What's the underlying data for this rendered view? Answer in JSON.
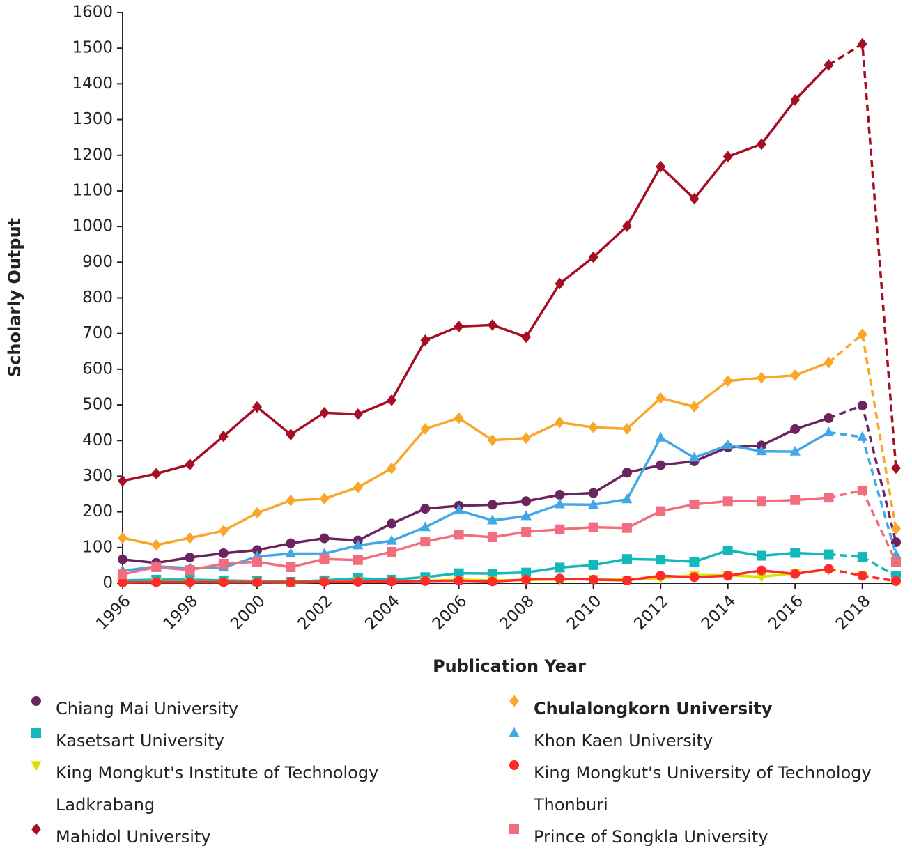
{
  "chart_data": {
    "type": "line",
    "x_label": "Publication Year",
    "y_label": "Scholarly Output",
    "x": [
      1996,
      1997,
      1998,
      1999,
      2000,
      2001,
      2002,
      2003,
      2004,
      2005,
      2006,
      2007,
      2008,
      2009,
      2010,
      2011,
      2012,
      2013,
      2014,
      2015,
      2016,
      2017,
      2018,
      2019
    ],
    "xlim": [
      1996,
      2019
    ],
    "xticks": [
      1996,
      1998,
      2000,
      2002,
      2004,
      2006,
      2008,
      2010,
      2012,
      2014,
      2016,
      2018
    ],
    "ylim": [
      0,
      1600
    ],
    "yticks": [
      0,
      100,
      200,
      300,
      400,
      500,
      600,
      700,
      800,
      900,
      1000,
      1100,
      1200,
      1300,
      1400,
      1500,
      1600
    ],
    "dashed_from_x": 2017,
    "series": [
      {
        "name": "Chiang Mai University",
        "color": "#6b2460",
        "marker": "circle",
        "values": [
          67,
          57,
          72,
          84,
          93,
          112,
          126,
          120,
          167,
          209,
          217,
          220,
          230,
          248,
          253,
          310,
          331,
          342,
          381,
          386,
          432,
          463,
          498,
          115
        ]
      },
      {
        "name": "Chulalongkorn University",
        "color": "#f9a72b",
        "marker": "diamond",
        "bold": true,
        "values": [
          127,
          107,
          127,
          147,
          197,
          232,
          237,
          269,
          322,
          433,
          463,
          401,
          407,
          451,
          437,
          433,
          519,
          495,
          567,
          576,
          583,
          619,
          698,
          153
        ]
      },
      {
        "name": "Kasetsart University",
        "color": "#13b8bb",
        "marker": "square",
        "values": [
          8,
          10,
          10,
          8,
          6,
          4,
          8,
          14,
          10,
          17,
          28,
          27,
          30,
          44,
          51,
          68,
          66,
          60,
          92,
          77,
          85,
          81,
          74,
          20
        ]
      },
      {
        "name": "Khon Kaen University",
        "color": "#41a8e6",
        "marker": "triangle-up",
        "values": [
          35,
          47,
          43,
          44,
          75,
          83,
          83,
          106,
          119,
          157,
          204,
          176,
          188,
          221,
          220,
          235,
          408,
          352,
          387,
          370,
          369,
          423,
          410,
          80
        ]
      },
      {
        "name": "King Mongkut's Institute of Technology Ladkrabang",
        "color": "#d8e400",
        "marker": "triangle-down",
        "values": [
          2,
          3,
          3,
          3,
          3,
          2,
          4,
          6,
          5,
          7,
          10,
          8,
          9,
          10,
          12,
          10,
          14,
          23,
          22,
          18,
          28,
          38,
          22,
          5
        ]
      },
      {
        "name": "King Mongkut's University of Technology Thonburi",
        "color": "#ff2a2a",
        "marker": "circle",
        "values": [
          2,
          3,
          3,
          3,
          3,
          3,
          4,
          4,
          5,
          6,
          7,
          5,
          10,
          13,
          10,
          8,
          21,
          17,
          21,
          36,
          26,
          40,
          21,
          6
        ]
      },
      {
        "name": "Mahidol University",
        "color": "#a50e24",
        "marker": "diamond",
        "values": [
          287,
          307,
          333,
          412,
          494,
          417,
          478,
          474,
          513,
          681,
          720,
          724,
          690,
          840,
          914,
          1001,
          1168,
          1078,
          1196,
          1231,
          1355,
          1453,
          1512,
          323
        ]
      },
      {
        "name": "Prince of Songkla University",
        "color": "#f26e7e",
        "marker": "square",
        "values": [
          25,
          45,
          37,
          55,
          60,
          45,
          68,
          65,
          88,
          117,
          136,
          129,
          144,
          151,
          157,
          155,
          202,
          221,
          230,
          230,
          233,
          240,
          260,
          60
        ]
      }
    ]
  }
}
